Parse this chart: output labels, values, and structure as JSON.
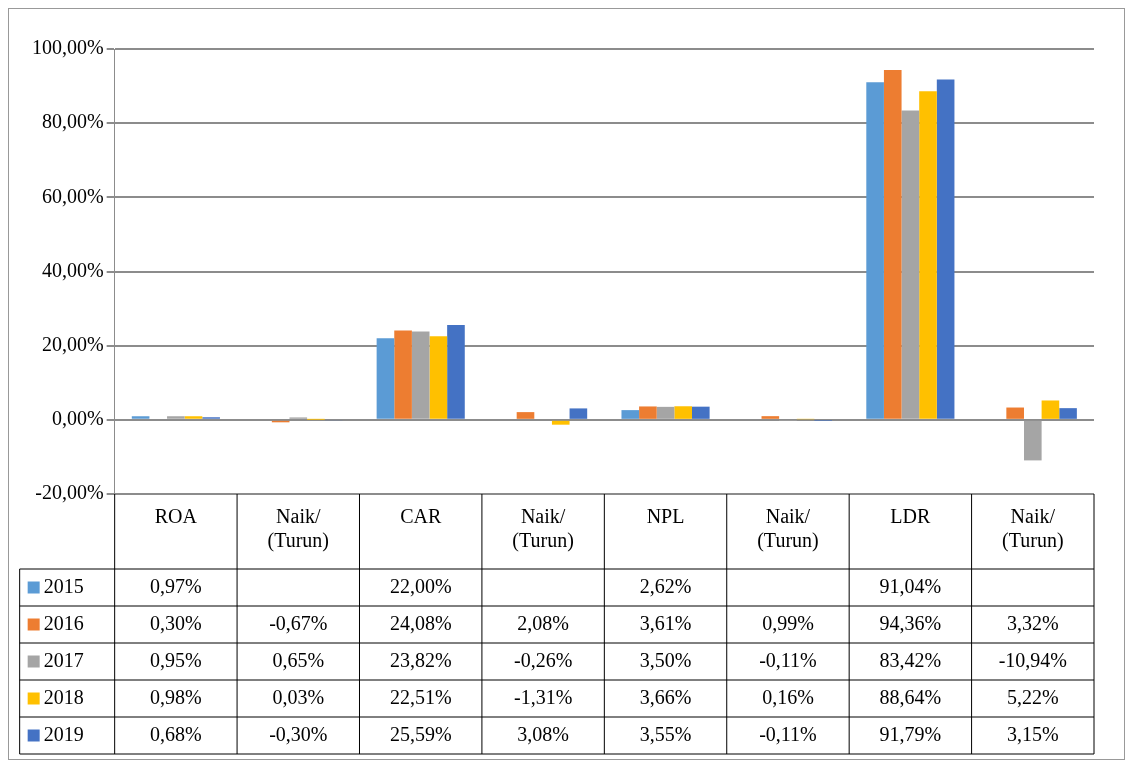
{
  "chart_data": {
    "type": "bar",
    "categories": [
      "ROA",
      "Naik/ (Turun)",
      "CAR",
      "Naik/ (Turun)",
      "NPL",
      "Naik/ (Turun)",
      "LDR",
      "Naik/ (Turun)"
    ],
    "series": [
      {
        "name": "2015",
        "color": "#5b9bd5",
        "values": [
          0.97,
          null,
          22.0,
          null,
          2.62,
          null,
          91.04,
          null
        ],
        "value_labels": [
          "0,97%",
          null,
          "22,00%",
          null,
          "2,62%",
          null,
          "91,04%",
          null
        ]
      },
      {
        "name": "2016",
        "color": "#ed7d31",
        "values": [
          0.3,
          -0.67,
          24.08,
          2.08,
          3.61,
          0.99,
          94.36,
          3.32
        ],
        "value_labels": [
          "0,30%",
          "-0,67%",
          "24,08%",
          "2,08%",
          "3,61%",
          "0,99%",
          "94,36%",
          "3,32%"
        ]
      },
      {
        "name": "2017",
        "color": "#a5a5a5",
        "values": [
          0.95,
          0.65,
          23.82,
          -0.26,
          3.5,
          -0.11,
          83.42,
          -10.94
        ],
        "value_labels": [
          "0,95%",
          "0,65%",
          "23,82%",
          "-0,26%",
          "3,50%",
          "-0,11%",
          "83,42%",
          "-10,94%"
        ]
      },
      {
        "name": "2018",
        "color": "#ffc000",
        "values": [
          0.98,
          0.03,
          22.51,
          -1.31,
          3.66,
          0.16,
          88.64,
          5.22
        ],
        "value_labels": [
          "0,98%",
          "0,03%",
          "22,51%",
          "-1,31%",
          "3,66%",
          "0,16%",
          "88,64%",
          "5,22%"
        ]
      },
      {
        "name": "2019",
        "color": "#4472c4",
        "values": [
          0.68,
          -0.3,
          25.59,
          3.08,
          3.55,
          -0.11,
          91.79,
          3.15
        ],
        "value_labels": [
          "0,68%",
          "-0,30%",
          "25,59%",
          "3,08%",
          "3,55%",
          "-0,11%",
          "91,79%",
          "3,15%"
        ]
      }
    ],
    "ylim": [
      -20,
      100
    ],
    "yticks": [
      {
        "value": -20,
        "label": "-20,00%"
      },
      {
        "value": 0,
        "label": "0,00%"
      },
      {
        "value": 20,
        "label": "20,00%"
      },
      {
        "value": 40,
        "label": "40,00%"
      },
      {
        "value": 60,
        "label": "60,00%"
      },
      {
        "value": 80,
        "label": "80,00%"
      },
      {
        "value": 100,
        "label": "100,00%"
      }
    ],
    "grid": "y",
    "legend": "bottom"
  }
}
